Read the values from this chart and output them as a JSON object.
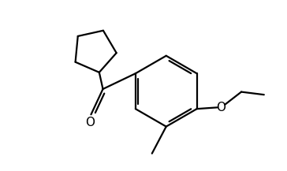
{
  "background_color": "#ffffff",
  "line_color": "#000000",
  "line_width": 1.6,
  "figsize": [
    3.64,
    2.17
  ],
  "dpi": 100,
  "xlim": [
    0,
    10
  ],
  "ylim": [
    0,
    6
  ]
}
